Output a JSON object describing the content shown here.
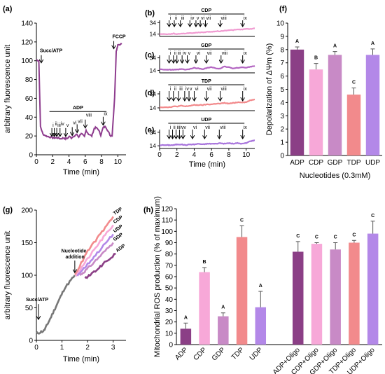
{
  "chart_data": [
    {
      "id": "a",
      "panel_label": "(a)",
      "type": "line",
      "xlabel": "Time (min)",
      "ylabel": "arbitrary fluorescence unit",
      "xlim": [
        0,
        11
      ],
      "ylim": [
        0,
        140
      ],
      "xticks": [
        0,
        2,
        4,
        6,
        8,
        10
      ],
      "yticks": [
        0,
        20,
        40,
        60,
        80,
        100,
        120,
        140
      ],
      "color": "#8e3c8e",
      "series": [
        {
          "x": [
            0,
            0.3,
            0.5,
            0.8,
            1.2,
            1.6,
            2.0,
            2.3,
            2.6,
            3.0,
            3.3,
            3.6,
            3.9,
            4.1,
            4.3,
            4.6,
            4.9,
            5.2,
            5.5,
            5.9,
            6.1,
            6.4,
            6.8,
            7.1,
            7.3,
            7.6,
            7.9,
            8.2,
            8.5,
            8.8,
            9.1,
            9.3,
            9.6,
            9.8,
            10.0,
            10.5
          ],
          "y": [
            101,
            100,
            30,
            22,
            20,
            19,
            18,
            18,
            18,
            17,
            18,
            17,
            18,
            20,
            18,
            19,
            22,
            19,
            23,
            19,
            26,
            22,
            20,
            28,
            29,
            27,
            21,
            29,
            30,
            25,
            20,
            21,
            60,
            110,
            117,
            118
          ]
        }
      ],
      "annotations": [
        {
          "label": "Succ/ATP",
          "x": 0.6,
          "y": 97
        },
        {
          "label": "FCCP",
          "x": 9.5,
          "y": 112
        }
      ],
      "bracket": {
        "label": "ADP",
        "x_range": [
          1.6,
          8.6
        ],
        "y": 46
      },
      "arrows": [
        {
          "label": "i",
          "x": 1.9,
          "y": 18
        },
        {
          "label": "ii",
          "x": 2.2,
          "y": 18
        },
        {
          "label": "iii",
          "x": 2.5,
          "y": 18
        },
        {
          "label": "iv",
          "x": 2.9,
          "y": 18
        },
        {
          "label": "v",
          "x": 3.6,
          "y": 18
        },
        {
          "label": "vi",
          "x": 4.4,
          "y": 19
        },
        {
          "label": "vii",
          "x": 5.0,
          "y": 22
        },
        {
          "label": "viii",
          "x": 6.0,
          "y": 27
        },
        {
          "label": "ix",
          "x": 8.2,
          "y": 30
        }
      ]
    },
    {
      "id": "b",
      "panel_label": "(b)",
      "type": "line",
      "title": "CDP",
      "xlim": [
        0,
        11
      ],
      "ylim": [
        10,
        38
      ],
      "yticks": [
        14,
        34
      ],
      "color": "#f09bd1",
      "series": [
        {
          "x": [
            0,
            0.8,
            1.2,
            1.6,
            2.0,
            2.5,
            3.0,
            3.5,
            4.0,
            4.5,
            5.0,
            5.5,
            6.0,
            6.5,
            7.0,
            7.5,
            8.0,
            8.5,
            9.0,
            9.5,
            10.0,
            10.5,
            11.0
          ],
          "y": [
            14,
            14,
            14,
            15,
            14,
            15,
            15,
            16,
            16,
            17,
            17,
            18,
            18,
            19,
            19,
            20,
            21,
            21,
            22,
            22,
            23,
            23,
            24
          ]
        }
      ],
      "bracket": {
        "label": "CDP",
        "x_range": [
          1.0,
          9.8
        ]
      },
      "arrows": [
        {
          "label": "i",
          "x": 1.1
        },
        {
          "label": "ii",
          "x": 1.7
        },
        {
          "label": "iii",
          "x": 2.4
        },
        {
          "label": "iv",
          "x": 3.5
        },
        {
          "label": "v",
          "x": 4.2
        },
        {
          "label": "vi",
          "x": 4.7
        },
        {
          "label": "vii",
          "x": 5.3
        },
        {
          "label": "viii",
          "x": 7.0
        },
        {
          "label": "ix",
          "x": 9.6
        }
      ]
    },
    {
      "id": "c",
      "panel_label": "(c)",
      "type": "line",
      "title": "GDP",
      "xlim": [
        0,
        11
      ],
      "ylim": [
        10,
        38
      ],
      "yticks": [
        14,
        34
      ],
      "color": "#b366c2",
      "series": [
        {
          "x": [
            0,
            0.8,
            1.2,
            1.6,
            2.0,
            2.5,
            3.0,
            3.5,
            4.0,
            4.5,
            5.0,
            5.5,
            6.0,
            6.5,
            7.0,
            7.5,
            8.0,
            8.5,
            9.0,
            9.5,
            10.0,
            10.5,
            11.0
          ],
          "y": [
            16,
            15,
            15,
            15,
            15,
            16,
            15,
            16,
            18,
            17,
            16,
            18,
            19,
            17,
            17,
            20,
            19,
            17,
            18,
            19,
            18,
            20,
            21
          ]
        }
      ],
      "bracket": {
        "label": "GDP",
        "x_range": [
          1.0,
          9.8
        ]
      },
      "arrows": [
        {
          "label": "i",
          "x": 1.1
        },
        {
          "label": "ii",
          "x": 1.6
        },
        {
          "label": "iii",
          "x": 2.0
        },
        {
          "label": "iv",
          "x": 2.6
        },
        {
          "label": "v",
          "x": 3.2
        },
        {
          "label": "vi",
          "x": 4.2
        },
        {
          "label": "vii",
          "x": 5.4
        },
        {
          "label": "viii",
          "x": 7.1
        },
        {
          "label": "ix",
          "x": 9.6
        }
      ]
    },
    {
      "id": "d",
      "panel_label": "(d)",
      "type": "line",
      "title": "TDP",
      "xlim": [
        0,
        11
      ],
      "ylim": [
        10,
        38
      ],
      "yticks": [
        14,
        34
      ],
      "color": "#f28a8c",
      "series": [
        {
          "x": [
            0,
            0.8,
            1.2,
            1.6,
            2.0,
            2.5,
            3.0,
            3.5,
            4.0,
            4.5,
            5.0,
            5.5,
            6.0,
            6.5,
            7.0,
            7.5,
            8.0,
            8.5,
            9.0,
            9.5,
            10.0,
            10.5,
            11.0
          ],
          "y": [
            15,
            15,
            15,
            16,
            16,
            17,
            16,
            17,
            18,
            18,
            18,
            19,
            19,
            20,
            20,
            21,
            20,
            21,
            22,
            22,
            22,
            25,
            26
          ]
        }
      ],
      "bracket": {
        "label": "TDP",
        "x_range": [
          1.0,
          9.8
        ]
      },
      "arrows": [
        {
          "label": "i",
          "x": 1.1
        },
        {
          "label": "ii",
          "x": 1.6
        },
        {
          "label": "iii",
          "x": 2.2
        },
        {
          "label": "iv",
          "x": 2.9
        },
        {
          "label": "v",
          "x": 3.4
        },
        {
          "label": "vi",
          "x": 4.0
        },
        {
          "label": "vii",
          "x": 5.4
        },
        {
          "label": "viii",
          "x": 7.0
        },
        {
          "label": "ix",
          "x": 9.6
        }
      ]
    },
    {
      "id": "e",
      "panel_label": "(e)",
      "type": "line",
      "title": "UDP",
      "xlim": [
        0,
        11
      ],
      "ylim": [
        10,
        38
      ],
      "xticks": [
        0,
        2,
        4,
        6,
        8,
        10
      ],
      "yticks": [
        14,
        34
      ],
      "xlabel": "Time (min)",
      "color": "#a874dc",
      "series": [
        {
          "x": [
            0,
            0.8,
            1.2,
            1.6,
            2.0,
            2.5,
            3.0,
            3.5,
            4.0,
            4.5,
            5.0,
            5.5,
            6.0,
            6.5,
            7.0,
            7.5,
            8.0,
            8.5,
            9.0,
            9.5,
            10.0,
            10.5,
            11.0
          ],
          "y": [
            15,
            15,
            15,
            15,
            16,
            16,
            15,
            16,
            16,
            17,
            16,
            17,
            17,
            17,
            18,
            17,
            18,
            17,
            18,
            17,
            18,
            21,
            22
          ]
        }
      ],
      "bracket": {
        "label": "UDP",
        "x_range": [
          1.0,
          9.8
        ]
      },
      "arrows": [
        {
          "label": "i",
          "x": 1.1
        },
        {
          "label": "ii",
          "x": 1.5
        },
        {
          "label": "iii",
          "x": 1.9
        },
        {
          "label": "iv",
          "x": 2.3
        },
        {
          "label": "v",
          "x": 2.7
        },
        {
          "label": "vi",
          "x": 3.8
        },
        {
          "label": "vii",
          "x": 5.2
        },
        {
          "label": "viii",
          "x": 6.9
        },
        {
          "label": "ix",
          "x": 9.6
        }
      ]
    },
    {
      "id": "f",
      "panel_label": "(f)",
      "type": "bar",
      "xlabel": "Nucleotides (0.3mM)",
      "ylabel": "Depolarization of ΔΨm (%)",
      "ylim": [
        0,
        10
      ],
      "yticks": [
        0,
        1,
        2,
        3,
        4,
        5,
        6,
        7,
        8,
        9,
        10
      ],
      "categories": [
        "ADP",
        "CDP",
        "GDP",
        "TDP",
        "UDP"
      ],
      "values": [
        8.0,
        6.5,
        7.6,
        4.6,
        7.6
      ],
      "errors": [
        0.2,
        0.45,
        0.25,
        0.5,
        0.45
      ],
      "significance": [
        "A",
        "B",
        "A",
        "C",
        "A"
      ],
      "colors": [
        "#8b3f86",
        "#f7a8d8",
        "#c88ac6",
        "#f28a8c",
        "#b388e8"
      ]
    },
    {
      "id": "g",
      "panel_label": "(g)",
      "type": "line",
      "xlabel": "Time (min)",
      "ylabel": "arbitrary fluorescence unit",
      "xlim": [
        0,
        3.5
      ],
      "ylim": [
        0,
        200
      ],
      "xticks": [
        0,
        1,
        2,
        3
      ],
      "yticks": [
        0,
        50,
        100,
        150,
        200
      ],
      "annotations": [
        {
          "label": "Succ/ATP",
          "x": 0.3,
          "y": 45
        },
        {
          "label": "Nucleotide",
          "x": 1.3,
          "y": 135
        },
        {
          "label": "addition",
          "x": 1.3,
          "y": 128
        }
      ],
      "series": [
        {
          "name": "Succ/ATP",
          "color": "#777777",
          "x": [
            0,
            0.3,
            0.5,
            0.8,
            1.1,
            1.5
          ],
          "y": [
            10,
            15,
            30,
            55,
            80,
            100
          ]
        },
        {
          "name": "TDP",
          "color": "#f28a8c",
          "x": [
            1.5,
            2.0,
            2.5,
            3.0
          ],
          "y": [
            100,
            137,
            163,
            190
          ]
        },
        {
          "name": "CDP",
          "color": "#f7a8d8",
          "x": [
            1.55,
            2.0,
            2.5,
            3.0
          ],
          "y": [
            100,
            125,
            152,
            177
          ]
        },
        {
          "name": "UDP",
          "color": "#b388e8",
          "x": [
            1.6,
            2.0,
            2.5,
            3.0
          ],
          "y": [
            100,
            117,
            140,
            163
          ]
        },
        {
          "name": "GDP",
          "color": "#c88ac6",
          "x": [
            1.7,
            2.0,
            2.5,
            3.0
          ],
          "y": [
            100,
            110,
            130,
            150
          ]
        },
        {
          "name": "ADP",
          "color": "#8b3f86",
          "x": [
            1.9,
            2.2,
            2.6,
            3.1
          ],
          "y": [
            95,
            103,
            117,
            133
          ]
        }
      ]
    },
    {
      "id": "h",
      "panel_label": "(h)",
      "type": "bar",
      "ylabel": "Mitochondrial ROS production (% of maximum)",
      "ylim": [
        0,
        120
      ],
      "yticks": [
        0,
        10,
        20,
        30,
        40,
        50,
        60,
        70,
        80,
        90,
        100,
        110,
        120
      ],
      "categories": [
        "ADP",
        "CDP",
        "GDP",
        "TDP",
        "UDP",
        "",
        "ADP+Oligo",
        "CDP+Oligo",
        "GDP+Oligo",
        "TDP+Oligo",
        "UDP+Oligo"
      ],
      "values": [
        14,
        64,
        25,
        95,
        33,
        null,
        82,
        89,
        84,
        90,
        98
      ],
      "errors": [
        5,
        4,
        3,
        10,
        14,
        null,
        9,
        1,
        6,
        2,
        11
      ],
      "significance": [
        "A",
        "B",
        "A",
        "C",
        "A",
        "",
        "C",
        "C",
        "C",
        "C",
        "C"
      ],
      "colors": [
        "#8b3f86",
        "#f7a8d8",
        "#c88ac6",
        "#f28a8c",
        "#b388e8",
        "",
        "#8b3f86",
        "#f7a8d8",
        "#c88ac6",
        "#f28a8c",
        "#b388e8"
      ]
    }
  ]
}
